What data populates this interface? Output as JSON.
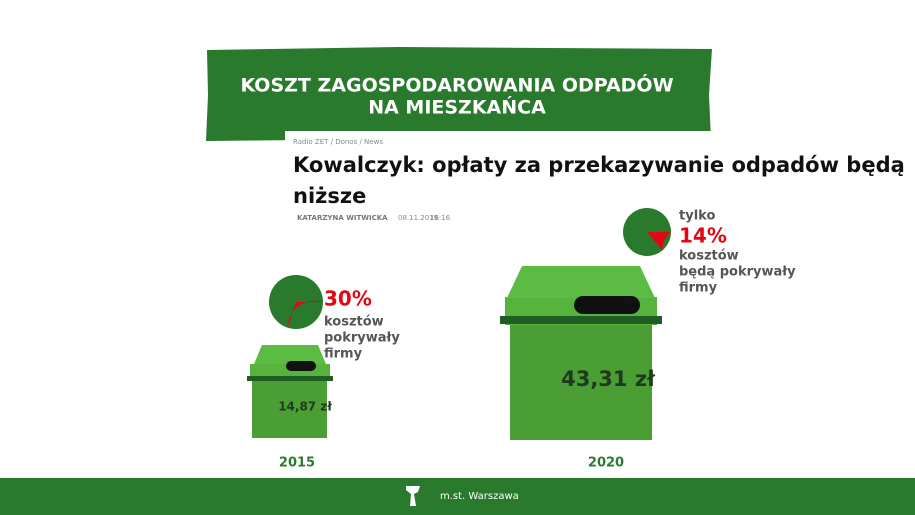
{
  "banner": {
    "title_lines": [
      "KOSZT ZAGOSPODAROWANIA ODPADÓW",
      "NA MIESZKAŃCA"
    ]
  },
  "article": {
    "breadcrumb": "Radio ZET / Donos / News",
    "headline_lines": [
      "Kowalczyk: opłaty za przekazywanie odpadów będą",
      "niższe"
    ],
    "author": "KATARZYNA WITWICKA",
    "date": "08.11.2019",
    "time": "16:16"
  },
  "items": [
    {
      "year": "2015",
      "cost": "14,87 zł",
      "share": 30,
      "share_label": "30%",
      "caption_lines": [
        "kosztów",
        "pokrywały",
        "firmy"
      ]
    },
    {
      "year": "2020",
      "cost": "43,31 zł",
      "prefix": "tylko",
      "share": 14,
      "share_label": "14%",
      "caption_lines": [
        "kosztów",
        "będą pokrywały",
        "firmy"
      ]
    }
  ],
  "footer": {
    "text": "m.st. Warszawa"
  }
}
